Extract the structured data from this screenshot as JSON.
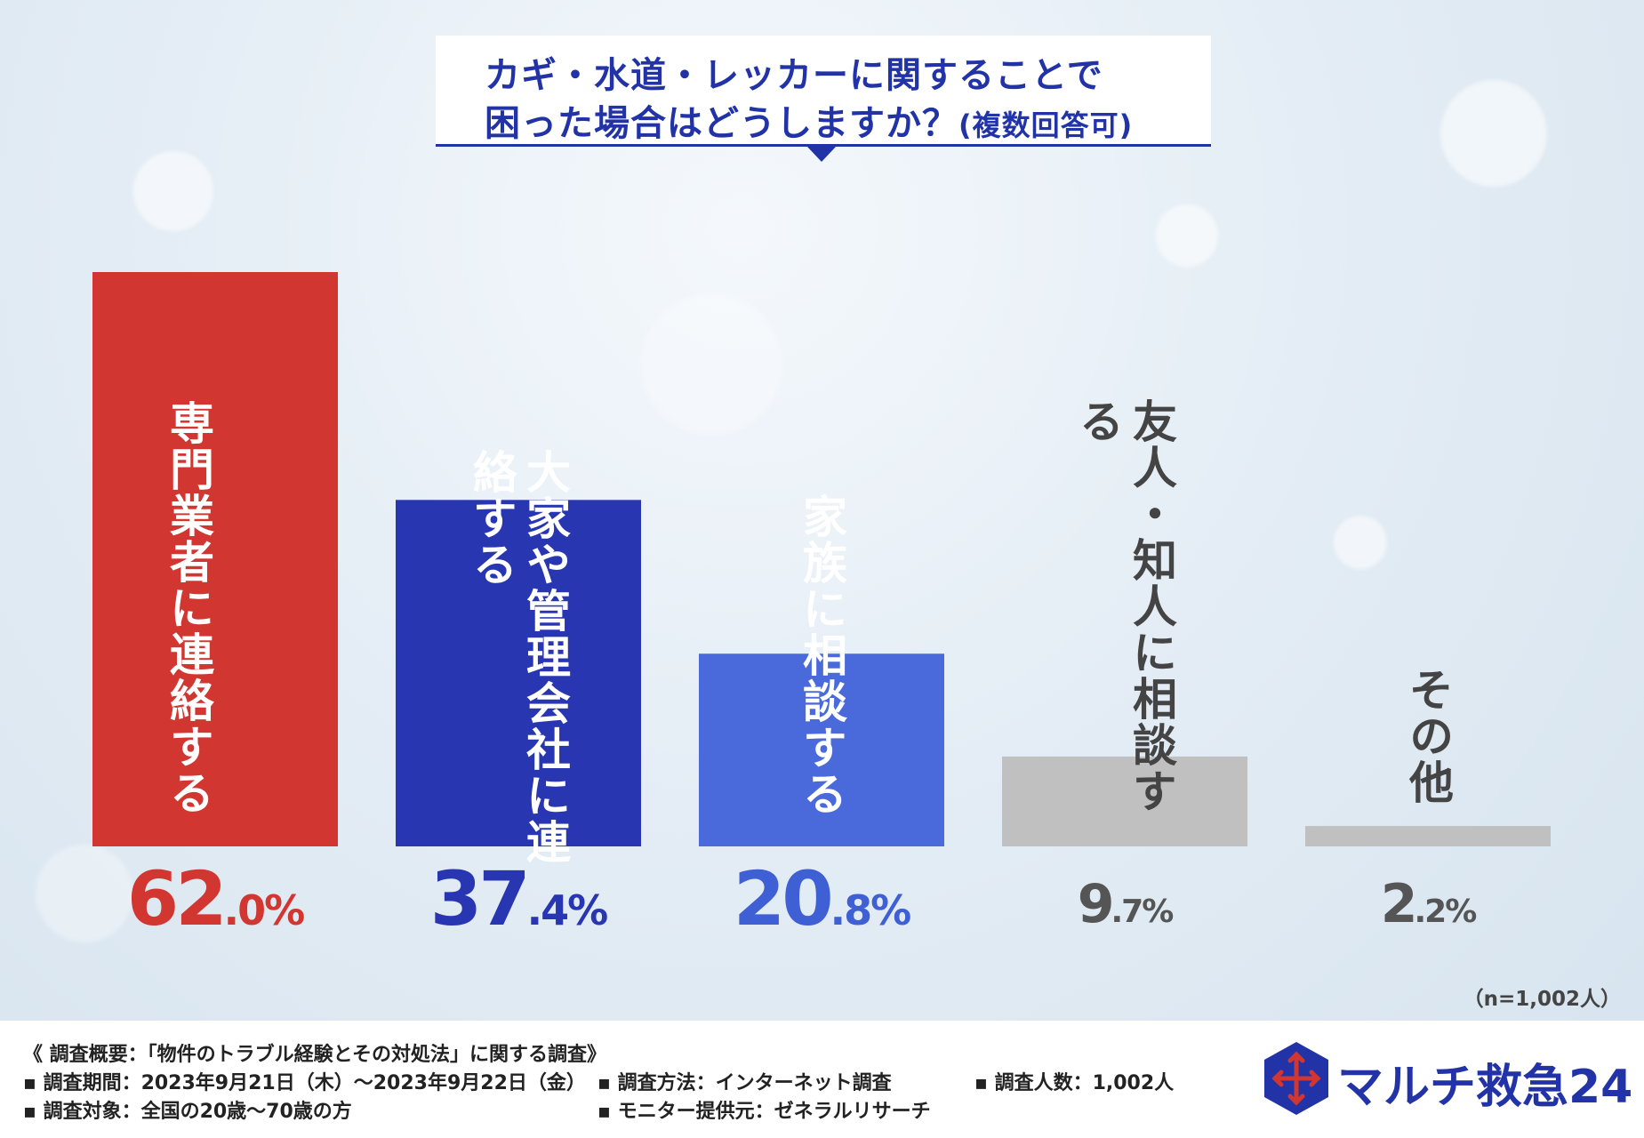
{
  "title": {
    "line1": "カギ・水道・レッカーに関することで",
    "line2_main": "困った場合はどうしますか？",
    "line2_small": "(複数回答可)"
  },
  "chart_data": {
    "type": "bar",
    "title": "カギ・水道・レッカーに関することで困った場合はどうしますか？(複数回答可)",
    "categories": [
      "専門業者に連絡する",
      "大家や管理会社に連絡する",
      "家族に相談する",
      "友人・知人に相談する",
      "その他"
    ],
    "values": [
      62.0,
      37.4,
      20.8,
      9.7,
      2.2
    ],
    "unit": "%",
    "ylim": [
      0,
      62.0
    ],
    "xlabel": "",
    "ylabel": "",
    "grid": false,
    "colors": [
      "#d13630",
      "#2836b2",
      "#4a69da",
      "#c0c0c0",
      "#c0c0c0"
    ],
    "value_colors": [
      "#d13630",
      "#2836b2",
      "#3f5fd4",
      "#555555",
      "#555555"
    ],
    "label_colors": [
      "#ffffff",
      "#ffffff",
      "#ffffff",
      "#444444",
      "#444444"
    ],
    "value_labels": [
      {
        "big": "62",
        "small": ".0%"
      },
      {
        "big": "37",
        "small": ".4%"
      },
      {
        "big": "20",
        "small": ".8%"
      },
      {
        "big": "9",
        "small": ".7%"
      },
      {
        "big": "2",
        "small": ".2%"
      }
    ]
  },
  "sample_size": "（n=1,002人）",
  "footer": {
    "heading": "《 調査概要：「物件のトラブル経験とその対処法」に関する調査》",
    "period": "▪ 調査期間：2023年9月21日（木）～2023年9月22日（金）",
    "method": "▪ 調査方法：インターネット調査",
    "count": "▪ 調査人数：1,002人",
    "target": "▪ 調査対象：全国の20歳～70歳の方",
    "provider": "▪ モニター提供元：ゼネラルリサーチ"
  },
  "logo": {
    "text": "マルチ救急24",
    "icon": "hexagon-cross-icon",
    "colors": {
      "hex": "#2233a8",
      "cross": "#d13630"
    }
  }
}
